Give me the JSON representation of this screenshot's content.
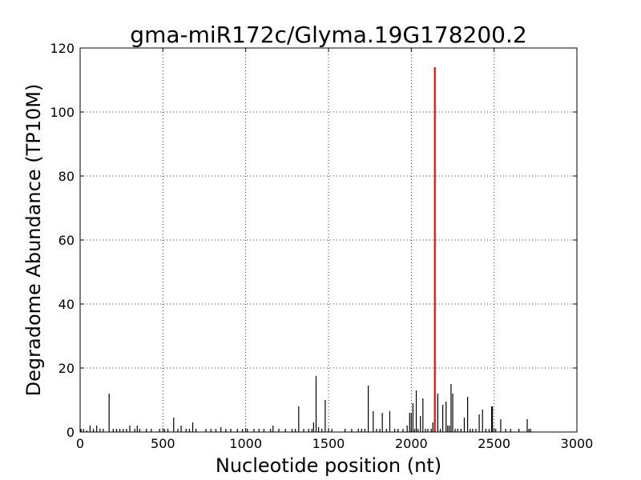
{
  "chart_data": {
    "type": "bar",
    "title": "gma-miR172c/Glyma.19G178200.2",
    "xlabel": "Nucleotide position (nt)",
    "ylabel": "Degradome Abundance (TP10M)",
    "xlim": [
      0,
      3000
    ],
    "ylim": [
      0,
      120
    ],
    "xticks": [
      0,
      500,
      1000,
      1500,
      2000,
      2500,
      3000
    ],
    "yticks": [
      0,
      20,
      40,
      60,
      80,
      100,
      120
    ],
    "grid": true,
    "colors": {
      "background_series": "#000000",
      "highlight": "#ff0000"
    },
    "background_series": {
      "x": [
        5,
        20,
        40,
        60,
        80,
        100,
        120,
        140,
        175,
        200,
        220,
        240,
        260,
        280,
        300,
        330,
        345,
        360,
        400,
        430,
        480,
        510,
        530,
        565,
        590,
        610,
        640,
        660,
        680,
        700,
        760,
        790,
        820,
        850,
        880,
        910,
        950,
        980,
        1010,
        1050,
        1080,
        1110,
        1150,
        1165,
        1200,
        1240,
        1280,
        1300,
        1320,
        1350,
        1380,
        1400,
        1410,
        1425,
        1440,
        1460,
        1480,
        1500,
        1520,
        1600,
        1640,
        1680,
        1700,
        1720,
        1740,
        1770,
        1790,
        1810,
        1825,
        1850,
        1870,
        1900,
        1920,
        1950,
        1975,
        1990,
        2000,
        2010,
        2020,
        2030,
        2040,
        2055,
        2070,
        2085,
        2100,
        2120,
        2130,
        2160,
        2175,
        2190,
        2210,
        2220,
        2230,
        2240,
        2250,
        2265,
        2280,
        2300,
        2320,
        2340,
        2355,
        2370,
        2390,
        2410,
        2430,
        2450,
        2470,
        2485,
        2490,
        2510,
        2540,
        2570,
        2600,
        2650,
        2700,
        2710,
        2720
      ],
      "values": [
        1,
        1,
        0.5,
        2,
        1,
        2,
        1,
        1,
        12,
        1,
        1,
        1,
        1,
        1,
        2,
        1,
        2,
        1,
        1,
        1,
        1,
        1,
        1,
        4.5,
        1,
        2,
        1,
        1,
        3,
        1,
        1,
        1,
        1,
        1.5,
        1,
        1,
        1,
        1,
        1,
        1,
        1,
        1,
        1,
        2,
        1,
        1,
        1,
        1,
        8,
        1,
        1,
        1,
        3,
        17.5,
        1.5,
        1,
        10,
        1,
        1,
        1,
        1,
        1,
        1,
        1,
        14.5,
        6.5,
        1,
        1,
        6,
        1,
        6.5,
        1,
        1,
        1,
        2,
        6,
        6,
        9,
        1,
        13,
        1,
        5,
        10.5,
        1,
        1,
        1,
        3,
        12,
        1,
        8.5,
        9.5,
        2,
        2,
        15,
        12,
        1,
        1,
        1,
        4.5,
        11,
        1,
        1,
        1,
        5.5,
        7,
        1,
        1,
        8,
        8,
        1,
        4,
        1,
        1,
        1,
        4,
        1,
        1
      ]
    },
    "highlight_series": {
      "x": [
        2142
      ],
      "values": [
        114
      ]
    }
  }
}
